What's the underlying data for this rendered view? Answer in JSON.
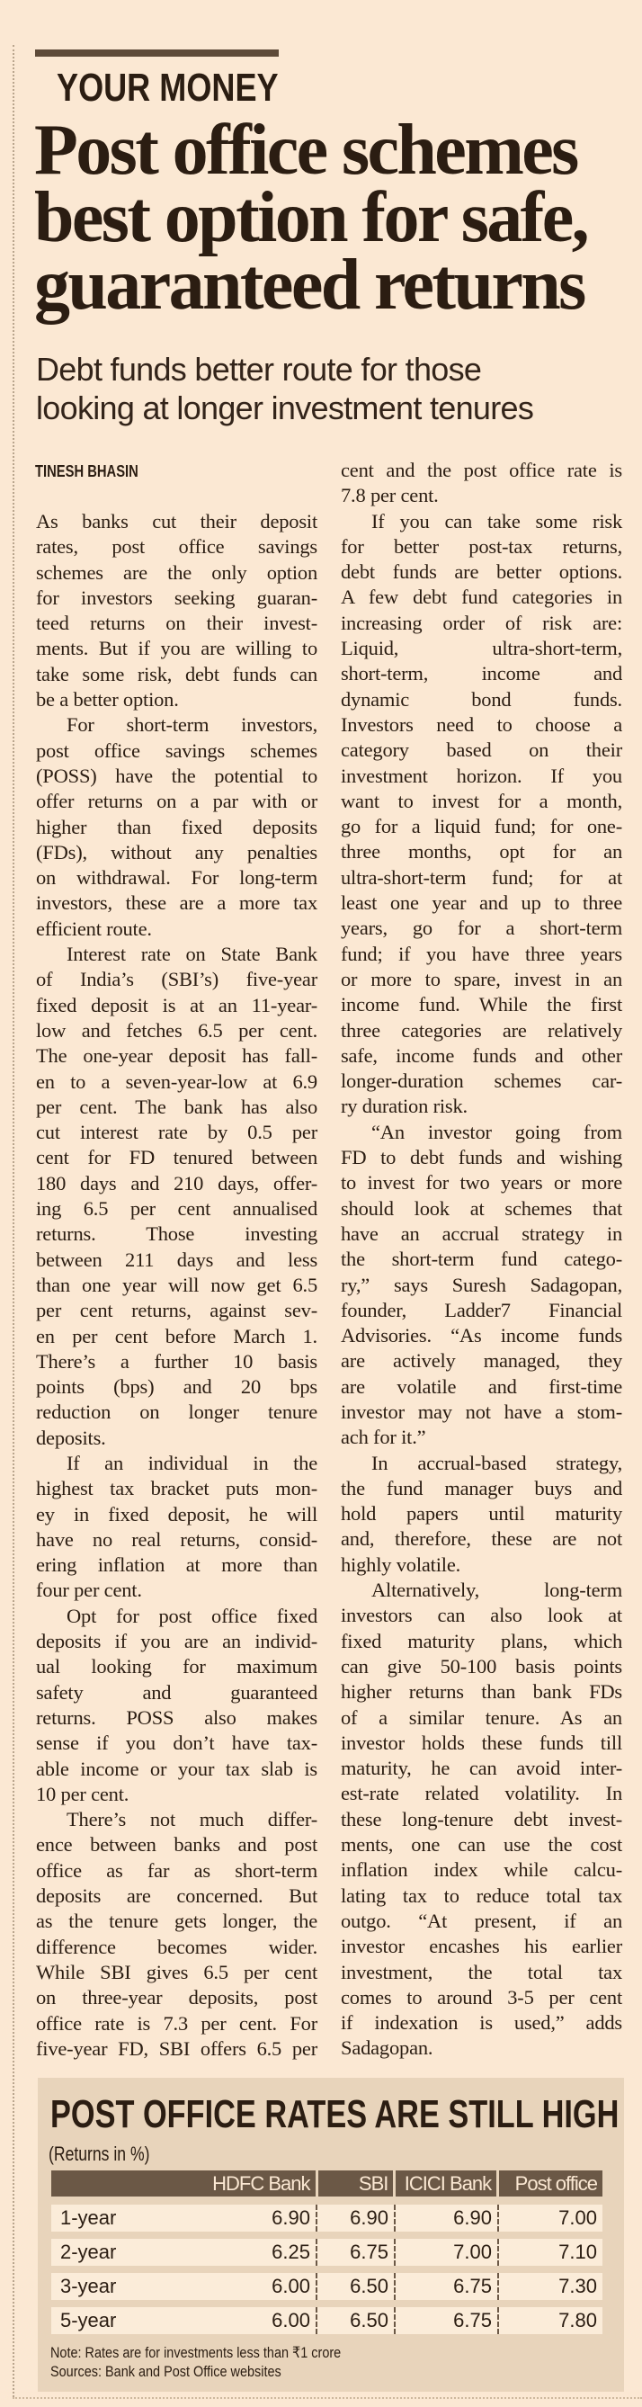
{
  "section": "YOUR MONEY",
  "headline": [
    "Post office schemes",
    "best option for safe,",
    "guaranteed returns"
  ],
  "subhead": [
    "Debt funds better route for those",
    "looking at longer investment tenures"
  ],
  "byline": "TINESH BHASIN",
  "columns": [
    [
      {
        "indent": false,
        "lines": [
          "As banks cut their deposit",
          "rates, post office savings",
          "schemes are the only option",
          "for investors seeking guaran-",
          "teed returns on their invest-",
          "ments. But if you are willing to",
          "take some risk, debt funds can",
          "be a better option."
        ]
      },
      {
        "indent": true,
        "lines": [
          "For short-term investors,",
          "post office savings schemes",
          "(POSS) have the potential to",
          "offer returns on a par with or",
          "higher than fixed deposits",
          "(FDs), without any penalties",
          "on withdrawal. For long-term",
          "investors, these are a more tax",
          "efficient route."
        ]
      },
      {
        "indent": true,
        "lines": [
          "Interest rate on State Bank",
          "of India’s (SBI’s) five-year",
          "fixed deposit is at an 11-year-",
          "low and fetches 6.5 per cent.",
          "The one-year deposit has fall-",
          "en to a seven-year-low at 6.9",
          "per cent. The bank has also",
          "cut interest rate by 0.5 per",
          "cent for FD tenured between",
          "180 days and 210 days, offer-",
          "ing 6.5 per cent annualised",
          "returns. Those investing",
          "between 211 days and less",
          "than one year will now get 6.5",
          "per cent returns, against sev-",
          "en per cent before March 1.",
          "There’s a further 10 basis",
          "points (bps) and 20 bps",
          "reduction on longer tenure",
          "deposits."
        ]
      },
      {
        "indent": true,
        "lines": [
          "If an individual in the",
          "highest tax bracket puts mon-",
          "ey in fixed deposit, he will",
          "have no real returns, consid-",
          "ering inflation at more than",
          "four per cent."
        ]
      },
      {
        "indent": true,
        "lines": [
          "Opt for post office fixed",
          "deposits if you are an individ-",
          "ual looking for maximum",
          "safety and guaranteed",
          "returns. POSS also makes",
          "sense if you don’t have tax-",
          "able income or your tax slab is",
          "10 per cent."
        ]
      },
      {
        "indent": true,
        "continues": true,
        "lines": [
          "There’s not much differ-",
          "ence between banks and post",
          "office as far as short-term",
          "deposits are concerned. But",
          "as the tenure gets longer, the",
          "difference becomes wider.",
          "While SBI gives 6.5 per cent",
          "on three-year deposits, post",
          "office rate is 7.3 per cent. For",
          "five-year FD, SBI offers 6.5 per"
        ]
      }
    ],
    [
      {
        "indent": false,
        "lines": [
          "cent and the post office rate is",
          "7.8 per cent."
        ]
      },
      {
        "indent": true,
        "lines": [
          "If you can take some risk",
          "for better post-tax returns,",
          "debt funds are better options.",
          "A few debt fund categories in",
          "increasing order of risk are:",
          "Liquid, ultra-short-term,",
          "short-term, income and",
          "dynamic bond funds.",
          "Investors need to choose a",
          "category based on their",
          "investment horizon. If you",
          "want to invest for a month,",
          "go for a liquid fund; for one-",
          "three months, opt for an",
          "ultra-short-term fund; for at",
          "least one year and up to three",
          "years, go for a short-term",
          "fund; if you have three years",
          "or more to spare, invest in an",
          "income fund. While the first",
          "three categories are relatively",
          "safe, income funds and other",
          "longer-duration schemes car-",
          "ry duration risk."
        ]
      },
      {
        "indent": true,
        "lines": [
          "“An investor going from",
          "FD to debt funds and wishing",
          "to invest for two years or more",
          "should look at schemes that",
          "have an accrual strategy in",
          "the short-term fund catego-",
          "ry,” says Suresh Sadagopan,",
          "founder, Ladder7 Financial",
          "Advisories. “As income funds",
          "are actively managed, they",
          "are volatile and first-time",
          "investor may not have a stom-",
          "ach for it.”"
        ]
      },
      {
        "indent": true,
        "lines": [
          "In accrual-based strategy,",
          "the fund manager buys and",
          "hold papers until maturity",
          "and, therefore, these are not",
          "highly volatile."
        ]
      },
      {
        "indent": true,
        "lines": [
          "Alternatively, long-term",
          "investors can also look at",
          "fixed maturity plans, which",
          "can give 50-100 basis points",
          "higher returns than bank FDs",
          "of a similar tenure. As an",
          "investor holds these funds till",
          "maturity, he can avoid inter-",
          "est-rate related volatility. In",
          "these long-tenure debt invest-",
          "ments, one can use the cost",
          "inflation index while calcu-",
          "lating tax to reduce total tax",
          "outgo. “At present, if an",
          "investor encashes his earlier",
          "investment, the total tax",
          "comes to around 3-5 per cent",
          "if indexation is used,” adds",
          "Sadagopan."
        ]
      }
    ]
  ],
  "table": {
    "title": "POST OFFICE RATES ARE STILL HIGH",
    "unit": "(Returns in %)",
    "columns": [
      "HDFC Bank",
      "SBI",
      "ICICI Bank",
      "Post office"
    ],
    "rows": [
      {
        "label": "1-year",
        "values": [
          "6.90",
          "6.90",
          "6.90",
          "7.00"
        ]
      },
      {
        "label": "2-year",
        "values": [
          "6.25",
          "6.75",
          "7.00",
          "7.10"
        ]
      },
      {
        "label": "3-year",
        "values": [
          "6.00",
          "6.50",
          "6.75",
          "7.30"
        ]
      },
      {
        "label": "5-year",
        "values": [
          "6.00",
          "6.50",
          "6.75",
          "7.80"
        ]
      }
    ],
    "note": "Note: Rates are for investments less than ₹1 crore",
    "sources": "Sources: Bank and Post Office websites"
  },
  "colors": {
    "background": "#fbe8d3",
    "text": "#2b1d12",
    "accent_bar": "#5e4b39",
    "table_header": "#6b5846",
    "table_box": "#e8d4bb"
  }
}
